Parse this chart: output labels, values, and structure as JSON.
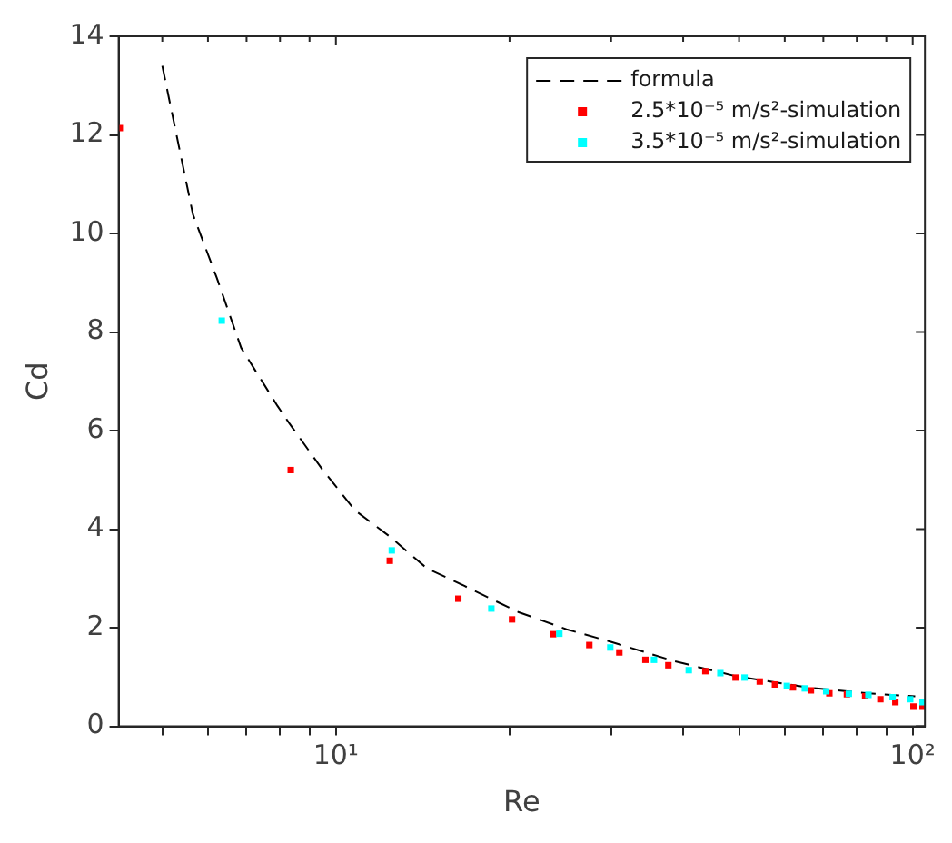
{
  "chart_data": {
    "type": "scatter",
    "xlabel": "Re",
    "ylabel": "Cd",
    "log": "x",
    "xlim": [
      4.2,
      105
    ],
    "ylim": [
      0,
      14
    ],
    "xticks": [
      {
        "value": 5,
        "label": null
      },
      {
        "value": 6,
        "label": null
      },
      {
        "value": 7,
        "label": null
      },
      {
        "value": 8,
        "label": null
      },
      {
        "value": 9,
        "label": null
      },
      {
        "value": 10,
        "label": "10¹"
      },
      {
        "value": 20,
        "label": null
      },
      {
        "value": 30,
        "label": null
      },
      {
        "value": 40,
        "label": null
      },
      {
        "value": 50,
        "label": null
      },
      {
        "value": 60,
        "label": null
      },
      {
        "value": 70,
        "label": null
      },
      {
        "value": 80,
        "label": null
      },
      {
        "value": 90,
        "label": null
      },
      {
        "value": 100,
        "label": "10²"
      }
    ],
    "yticks": [
      0,
      2,
      4,
      6,
      8,
      10,
      12,
      14
    ],
    "grid": false,
    "legend": "top right",
    "series": [
      {
        "name": "formula",
        "type": "line",
        "line_style": "dashed",
        "marker": "none",
        "color": "#000000",
        "x": [
          5.0,
          5.65,
          6.22,
          6.85,
          7.92,
          8.3,
          9.49,
          10.8,
          12.4,
          14.4,
          15.5,
          16.7,
          20.7,
          25.1,
          29.7,
          38.7,
          49.3,
          65.8,
          83.8,
          101
        ],
        "values": [
          13.4,
          10.39,
          9.09,
          7.68,
          6.5,
          6.15,
          5.2,
          4.38,
          3.85,
          3.2,
          3.03,
          2.85,
          2.32,
          1.97,
          1.73,
          1.32,
          1.02,
          0.79,
          0.67,
          0.61
        ]
      },
      {
        "name": "2.5*10⁻⁵ m/s²-simulation",
        "type": "scatter",
        "marker": "square",
        "color": "#ff0000",
        "x": [
          4.22,
          8.35,
          12.4,
          16.3,
          20.2,
          23.8,
          27.5,
          31.0,
          34.4,
          37.7,
          43.7,
          49.3,
          54.3,
          57.7,
          62.0,
          66.6,
          71.7,
          76.9,
          82.7,
          87.9,
          93.3,
          100.3,
          104
        ],
        "values": [
          12.14,
          5.2,
          3.36,
          2.59,
          2.17,
          1.87,
          1.65,
          1.5,
          1.35,
          1.24,
          1.12,
          0.99,
          0.91,
          0.85,
          0.79,
          0.73,
          0.67,
          0.65,
          0.61,
          0.55,
          0.49,
          0.4,
          0.4
        ]
      },
      {
        "name": "3.5*10⁻⁵ m/s²-simulation",
        "type": "scatter",
        "marker": "square",
        "color": "#00ffff",
        "x": [
          6.34,
          12.5,
          18.6,
          24.4,
          29.9,
          35.6,
          40.9,
          46.4,
          51.1,
          60.5,
          65.0,
          70.8,
          77.5,
          83.8,
          92.3,
          99,
          104
        ],
        "values": [
          8.23,
          3.57,
          2.39,
          1.88,
          1.6,
          1.35,
          1.14,
          1.08,
          0.99,
          0.82,
          0.77,
          0.71,
          0.66,
          0.64,
          0.59,
          0.55,
          0.49
        ]
      }
    ]
  }
}
